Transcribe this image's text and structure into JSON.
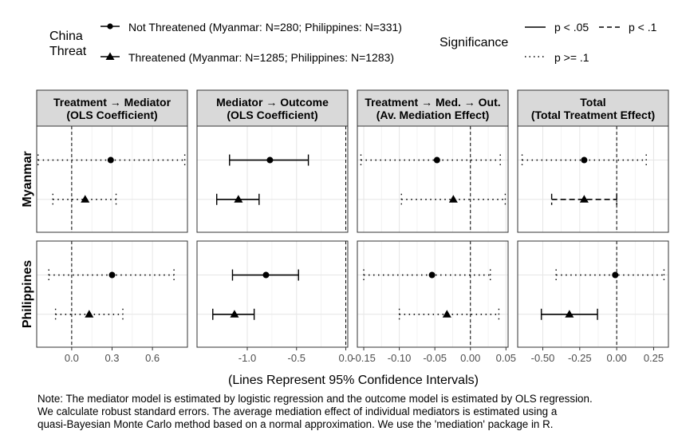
{
  "legend": {
    "group_title": [
      "China",
      "Threat"
    ],
    "groups": [
      {
        "name": "Not Threatened (Myanmar: N=280; Philippines: N=331)",
        "marker": "circle"
      },
      {
        "name": "Threatened (Myanmar: N=1285; Philippines: N=1283)",
        "marker": "triangle"
      }
    ],
    "sig_title": "Significance",
    "sig": [
      {
        "label": "p < .05",
        "style": "solid"
      },
      {
        "label": "p < .1",
        "style": "dashed"
      },
      {
        "label": "p >= .1",
        "style": "dotted"
      }
    ]
  },
  "xlabel": "(Lines Represent 95% Confidence Intervals)",
  "note": [
    "Note: The mediator model is estimated by logistic regression and the outcome model is estimated by OLS regression.",
    "We calculate robust standard errors. The average mediation effect of individual mediators is estimated using a",
    "quasi-Bayesian Monte Carlo method based on a normal approximation. We use the 'mediation' package in R."
  ],
  "chart_data": {
    "type": "scatter",
    "subtype": "coefficient plot with 95% confidence intervals",
    "grid": true,
    "reference_line": 0,
    "rows": [
      "Myanmar",
      "Philippines"
    ],
    "panels": [
      {
        "title": [
          "Treatment → Mediator",
          "(OLS Coefficient)"
        ],
        "xlim": [
          -0.26,
          0.86
        ],
        "ticks": [
          0.0,
          0.3,
          0.6
        ],
        "tick_labels": [
          "0.0",
          "0.3",
          "0.6"
        ],
        "points": {
          "Myanmar": [
            {
              "group": "Not Threatened",
              "est": 0.29,
              "lo": -0.25,
              "hi": 0.84,
              "sig": "dotted"
            },
            {
              "group": "Threatened",
              "est": 0.1,
              "lo": -0.14,
              "hi": 0.33,
              "sig": "dotted"
            }
          ],
          "Philippines": [
            {
              "group": "Not Threatened",
              "est": 0.3,
              "lo": -0.17,
              "hi": 0.76,
              "sig": "dotted"
            },
            {
              "group": "Threatened",
              "est": 0.13,
              "lo": -0.12,
              "hi": 0.38,
              "sig": "dotted"
            }
          ]
        }
      },
      {
        "title": [
          "Mediator → Outcome",
          "(OLS Coefficient)"
        ],
        "xlim": [
          -1.51,
          0.02
        ],
        "ticks": [
          -1.0,
          -0.5,
          0.0
        ],
        "tick_labels": [
          "-1.0",
          "-0.5",
          "0.0"
        ],
        "points": {
          "Myanmar": [
            {
              "group": "Not Threatened",
              "est": -0.77,
              "lo": -1.18,
              "hi": -0.38,
              "sig": "solid"
            },
            {
              "group": "Threatened",
              "est": -1.09,
              "lo": -1.31,
              "hi": -0.88,
              "sig": "solid"
            }
          ],
          "Philippines": [
            {
              "group": "Not Threatened",
              "est": -0.81,
              "lo": -1.15,
              "hi": -0.48,
              "sig": "solid"
            },
            {
              "group": "Threatened",
              "est": -1.13,
              "lo": -1.35,
              "hi": -0.93,
              "sig": "solid"
            }
          ]
        }
      },
      {
        "title": [
          "Treatment → Med. → Out.",
          "(Av. Mediation Effect)"
        ],
        "xlim": [
          -0.159,
          0.053
        ],
        "ticks": [
          -0.15,
          -0.1,
          -0.05,
          0.0,
          0.05
        ],
        "tick_labels": [
          "-0.15",
          "-0.10",
          "-0.05",
          "0.00",
          "0.05"
        ],
        "points": {
          "Myanmar": [
            {
              "group": "Not Threatened",
              "est": -0.047,
              "lo": -0.154,
              "hi": 0.042,
              "sig": "dotted"
            },
            {
              "group": "Threatened",
              "est": -0.024,
              "lo": -0.097,
              "hi": 0.049,
              "sig": "dotted"
            }
          ],
          "Philippines": [
            {
              "group": "Not Threatened",
              "est": -0.054,
              "lo": -0.15,
              "hi": 0.028,
              "sig": "dotted"
            },
            {
              "group": "Threatened",
              "est": -0.033,
              "lo": -0.1,
              "hi": 0.04,
              "sig": "dotted"
            }
          ]
        }
      },
      {
        "title": [
          "Total",
          "(Total Treatment Effect)"
        ],
        "xlim": [
          -0.67,
          0.35
        ],
        "ticks": [
          -0.5,
          -0.25,
          0.0,
          0.25
        ],
        "tick_labels": [
          "-0.50",
          "-0.25",
          "0.00",
          "0.25"
        ],
        "points": {
          "Myanmar": [
            {
              "group": "Not Threatened",
              "est": -0.22,
              "lo": -0.64,
              "hi": 0.2,
              "sig": "dotted"
            },
            {
              "group": "Threatened",
              "est": -0.22,
              "lo": -0.44,
              "hi": 0.0,
              "sig": "dashed"
            }
          ],
          "Philippines": [
            {
              "group": "Not Threatened",
              "est": -0.01,
              "lo": -0.41,
              "hi": 0.32,
              "sig": "dotted"
            },
            {
              "group": "Threatened",
              "est": -0.32,
              "lo": -0.51,
              "hi": -0.13,
              "sig": "solid"
            }
          ]
        }
      }
    ]
  }
}
